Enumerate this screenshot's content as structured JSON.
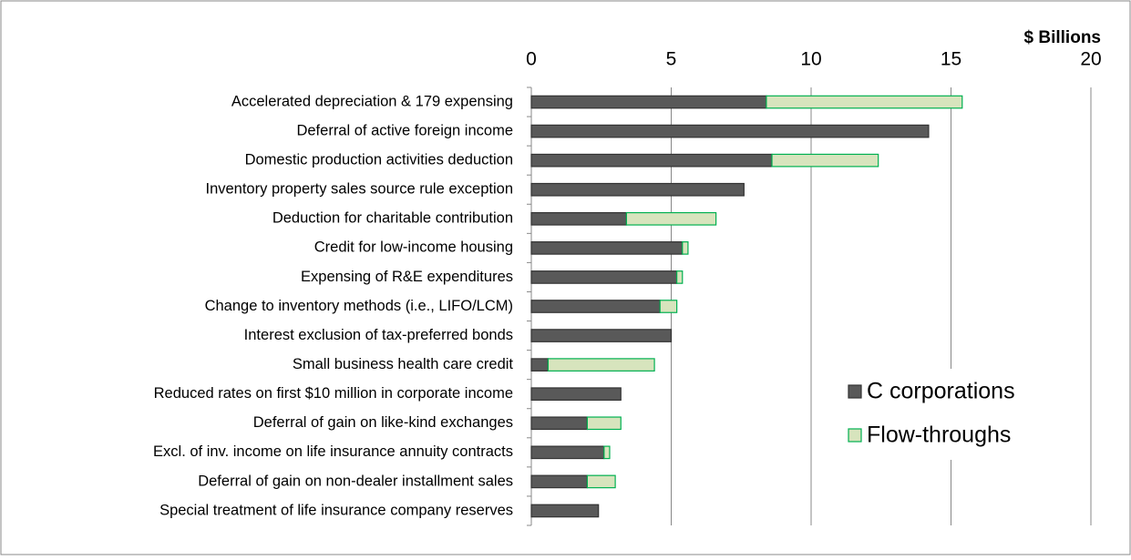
{
  "chart_data": {
    "type": "stacked-bar-horizontal",
    "axis_title": "$ Billions",
    "categories": [
      "Accelerated depreciation & 179 expensing",
      "Deferral of active foreign income",
      "Domestic production activities deduction",
      "Inventory property sales source rule exception",
      "Deduction for charitable contribution",
      "Credit for low-income housing",
      "Expensing of R&E expenditures",
      "Change to inventory methods (i.e., LIFO/LCM)",
      "Interest exclusion of tax-preferred bonds",
      "Small business health care credit",
      "Reduced rates on first $10 million in corporate income",
      "Deferral of gain on like-kind exchanges",
      "Excl. of inv. income on life insurance annuity contracts",
      "Deferral of gain on non-dealer installment sales",
      "Special treatment of life insurance company reserves"
    ],
    "series": [
      {
        "name": "C corporations",
        "color": "#595959",
        "values": [
          8.4,
          14.2,
          8.6,
          7.6,
          3.4,
          5.4,
          5.2,
          4.6,
          5.0,
          0.6,
          3.2,
          2.0,
          2.6,
          2.0,
          2.4
        ]
      },
      {
        "name": "Flow-throughs",
        "color": "#d7e4bd",
        "values": [
          7.0,
          0,
          3.8,
          0,
          3.2,
          0.2,
          0.2,
          0.6,
          0,
          3.8,
          0,
          1.2,
          0.2,
          1.0,
          0
        ]
      }
    ],
    "xlim": [
      0,
      20
    ],
    "xticks": [
      0,
      5,
      10,
      15,
      20
    ],
    "grid": true,
    "legend": "lower right"
  }
}
